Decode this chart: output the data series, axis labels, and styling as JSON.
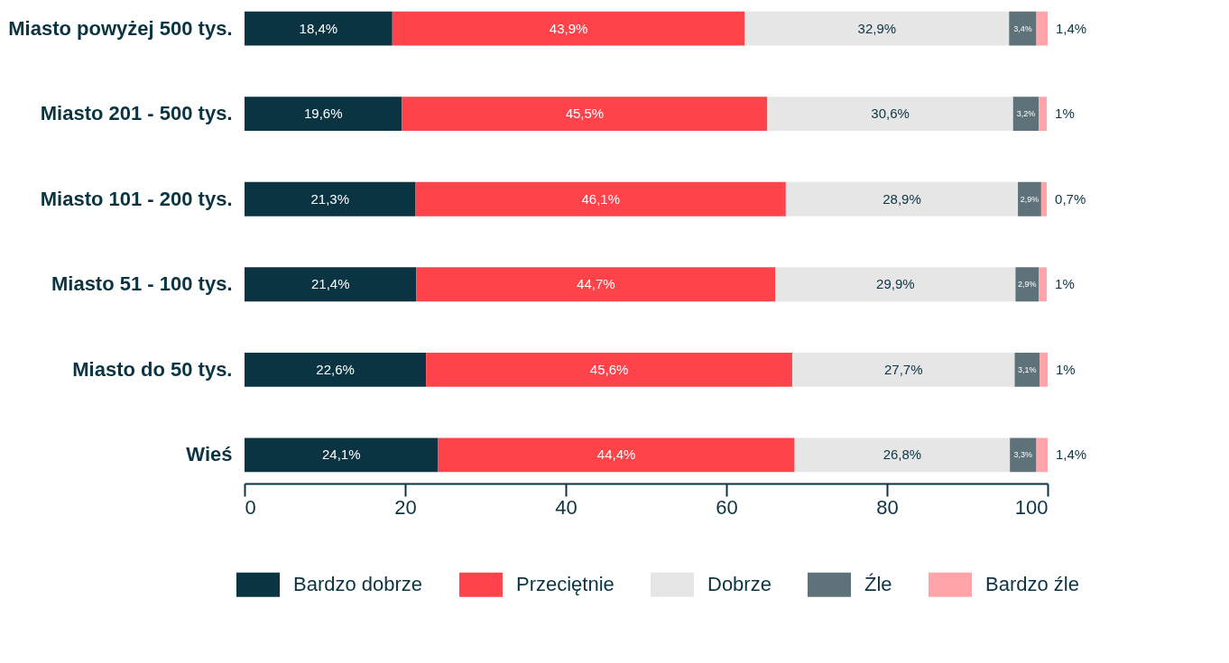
{
  "chart_data": {
    "type": "bar",
    "orientation": "horizontal",
    "stacked": true,
    "categories": [
      "Miasto powyżej 500 tys.",
      "Miasto 201 - 500 tys.",
      "Miasto 101 - 200 tys.",
      "Miasto 51 - 100 tys.",
      "Miasto do 50 tys.",
      "Wieś"
    ],
    "series": [
      {
        "name": "Bardzo dobrze",
        "color": "#0a3442",
        "values": [
          18.4,
          19.6,
          21.3,
          21.4,
          22.6,
          24.1
        ],
        "value_labels": [
          "18,4%",
          "19,6%",
          "21,3%",
          "21,4%",
          "22,6%",
          "24,1%"
        ]
      },
      {
        "name": "Przeciętnie",
        "color": "#ff434b",
        "values": [
          43.9,
          45.5,
          46.1,
          44.7,
          45.6,
          44.4
        ],
        "value_labels": [
          "43,9%",
          "45,5%",
          "46,1%",
          "44,7%",
          "45,6%",
          "44,4%"
        ]
      },
      {
        "name": "Dobrze",
        "color": "#e6e6e6",
        "values": [
          32.9,
          30.6,
          28.9,
          29.9,
          27.7,
          26.8
        ],
        "value_labels": [
          "32,9%",
          "30,6%",
          "28,9%",
          "29,9%",
          "27,7%",
          "26,8%"
        ]
      },
      {
        "name": "Źle",
        "color": "#5e7279",
        "values": [
          3.4,
          3.2,
          2.9,
          2.9,
          3.1,
          3.3
        ],
        "value_labels": [
          "3,4%",
          "3,2%",
          "2,9%",
          "2,9%",
          "3,1%",
          "3,3%"
        ]
      },
      {
        "name": "Bardzo źle",
        "color": "#ffa4a8",
        "values": [
          1.4,
          1,
          0.7,
          1,
          1,
          1.4
        ],
        "value_labels": [
          "1,4%",
          "1%",
          "0,7%",
          "1%",
          "1%",
          "1,4%"
        ]
      }
    ],
    "xlim": [
      0,
      100
    ],
    "xticks": [
      0,
      20,
      40,
      60,
      80,
      100
    ],
    "grid": false,
    "legend": "bottom"
  }
}
